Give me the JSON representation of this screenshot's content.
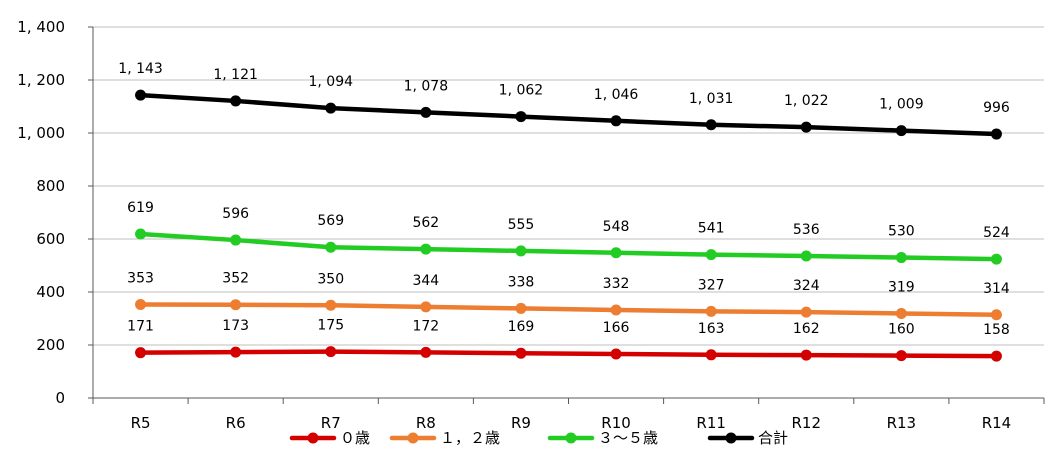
{
  "chart_data": {
    "type": "line",
    "categories": [
      "R5",
      "R6",
      "R7",
      "R8",
      "R9",
      "R10",
      "R11",
      "R12",
      "R13",
      "R14"
    ],
    "series": [
      {
        "name": "０歳",
        "color": "#d40000",
        "values": [
          171,
          173,
          175,
          172,
          169,
          166,
          163,
          162,
          160,
          158
        ],
        "labels": [
          "171",
          "173",
          "175",
          "172",
          "169",
          "166",
          "163",
          "162",
          "160",
          "158"
        ]
      },
      {
        "name": "１，２歳",
        "color": "#ed7d31",
        "values": [
          353,
          352,
          350,
          344,
          338,
          332,
          327,
          324,
          319,
          314
        ],
        "labels": [
          "353",
          "352",
          "350",
          "344",
          "338",
          "332",
          "327",
          "324",
          "319",
          "314"
        ]
      },
      {
        "name": "３～５歳",
        "color": "#22cc22",
        "values": [
          619,
          596,
          569,
          562,
          555,
          548,
          541,
          536,
          530,
          524
        ],
        "labels": [
          "619",
          "596",
          "569",
          "562",
          "555",
          "548",
          "541",
          "536",
          "530",
          "524"
        ]
      },
      {
        "name": "合計",
        "color": "#000000",
        "values": [
          1143,
          1121,
          1094,
          1078,
          1062,
          1046,
          1031,
          1022,
          1009,
          996
        ],
        "labels": [
          "1, 143",
          "1, 121",
          "1, 094",
          "1, 078",
          "1, 062",
          "1, 046",
          "1, 031",
          "1, 022",
          "1, 009",
          "996"
        ]
      }
    ],
    "ylim": [
      0,
      1400
    ],
    "yticks": [
      0,
      200,
      400,
      600,
      800,
      1000,
      1200,
      1400
    ],
    "ytick_labels": [
      "0",
      "200",
      "400",
      "600",
      "800",
      "1, 000",
      "1, 200",
      "1, 400"
    ],
    "grid": true,
    "legend": "bottom"
  }
}
